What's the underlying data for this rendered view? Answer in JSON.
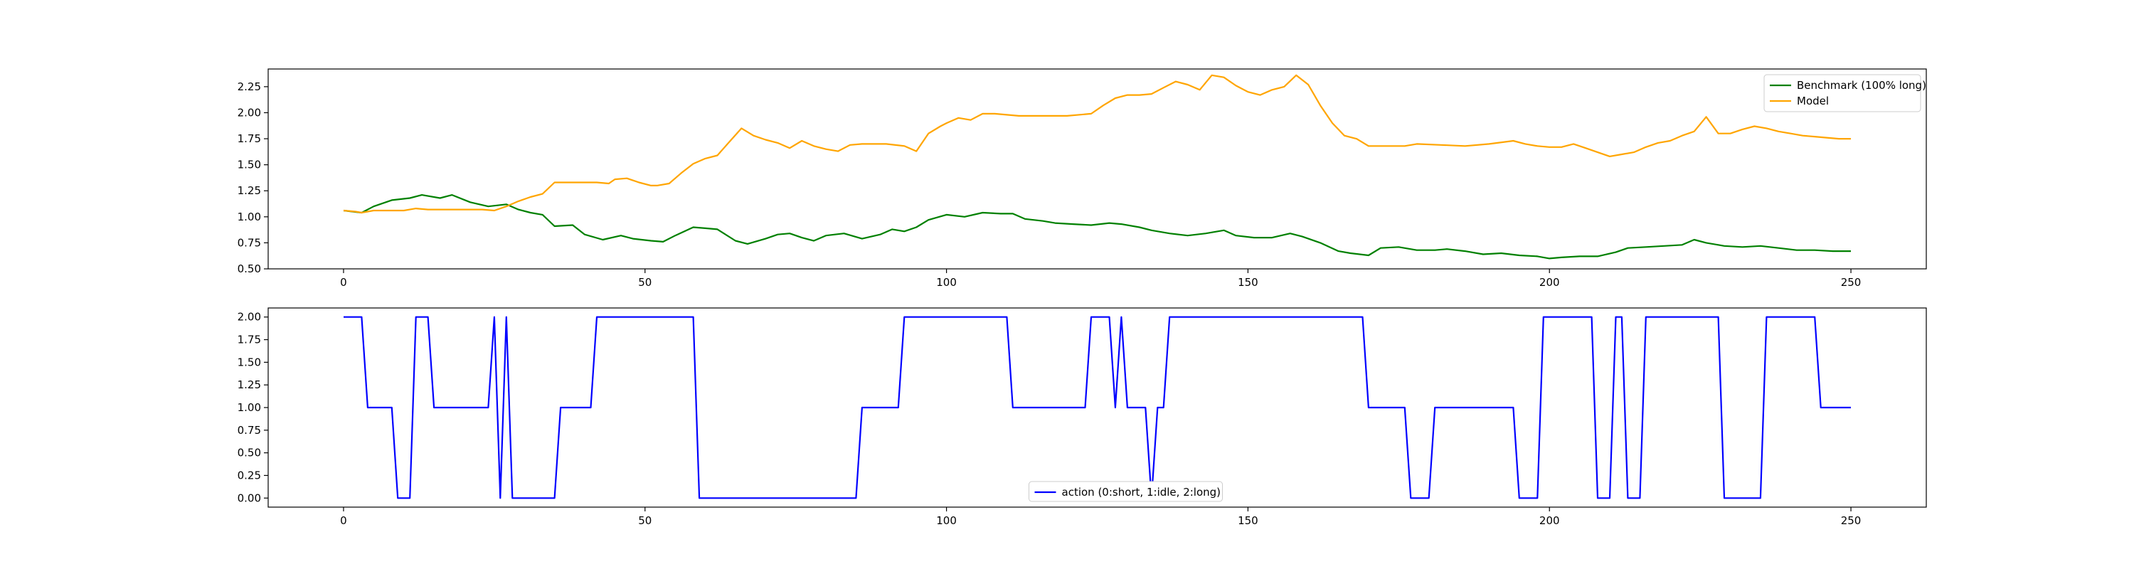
{
  "chart_data": [
    {
      "type": "line",
      "xlim": [
        -12.5,
        262.5
      ],
      "ylim": [
        0.5,
        2.42
      ],
      "xticks": [
        0,
        50,
        100,
        150,
        200,
        250
      ],
      "yticks": [
        0.5,
        0.75,
        1.0,
        1.25,
        1.5,
        1.75,
        2.0,
        2.25
      ],
      "legend_position": "top-right",
      "series": [
        {
          "name": "Benchmark (100% long)",
          "color": "#008000",
          "points": [
            [
              0,
              1.06
            ],
            [
              3,
              1.04
            ],
            [
              5,
              1.1
            ],
            [
              8,
              1.16
            ],
            [
              11,
              1.18
            ],
            [
              13,
              1.21
            ],
            [
              16,
              1.18
            ],
            [
              18,
              1.21
            ],
            [
              21,
              1.14
            ],
            [
              24,
              1.1
            ],
            [
              27,
              1.12
            ],
            [
              29,
              1.07
            ],
            [
              31,
              1.04
            ],
            [
              33,
              1.02
            ],
            [
              35,
              0.91
            ],
            [
              38,
              0.92
            ],
            [
              40,
              0.83
            ],
            [
              43,
              0.78
            ],
            [
              46,
              0.82
            ],
            [
              48,
              0.79
            ],
            [
              51,
              0.77
            ],
            [
              53,
              0.76
            ],
            [
              55,
              0.82
            ],
            [
              58,
              0.9
            ],
            [
              60,
              0.89
            ],
            [
              62,
              0.88
            ],
            [
              65,
              0.77
            ],
            [
              67,
              0.74
            ],
            [
              70,
              0.79
            ],
            [
              72,
              0.83
            ],
            [
              74,
              0.84
            ],
            [
              76,
              0.8
            ],
            [
              78,
              0.77
            ],
            [
              80,
              0.82
            ],
            [
              83,
              0.84
            ],
            [
              86,
              0.79
            ],
            [
              89,
              0.83
            ],
            [
              91,
              0.88
            ],
            [
              93,
              0.86
            ],
            [
              95,
              0.9
            ],
            [
              97,
              0.97
            ],
            [
              100,
              1.02
            ],
            [
              103,
              1.0
            ],
            [
              106,
              1.04
            ],
            [
              109,
              1.03
            ],
            [
              111,
              1.03
            ],
            [
              113,
              0.98
            ],
            [
              116,
              0.96
            ],
            [
              118,
              0.94
            ],
            [
              121,
              0.93
            ],
            [
              124,
              0.92
            ],
            [
              127,
              0.94
            ],
            [
              129,
              0.93
            ],
            [
              132,
              0.9
            ],
            [
              134,
              0.87
            ],
            [
              137,
              0.84
            ],
            [
              140,
              0.82
            ],
            [
              143,
              0.84
            ],
            [
              146,
              0.87
            ],
            [
              148,
              0.82
            ],
            [
              151,
              0.8
            ],
            [
              154,
              0.8
            ],
            [
              157,
              0.84
            ],
            [
              159,
              0.81
            ],
            [
              162,
              0.75
            ],
            [
              165,
              0.67
            ],
            [
              167,
              0.65
            ],
            [
              170,
              0.63
            ],
            [
              172,
              0.7
            ],
            [
              175,
              0.71
            ],
            [
              178,
              0.68
            ],
            [
              181,
              0.68
            ],
            [
              183,
              0.69
            ],
            [
              186,
              0.67
            ],
            [
              189,
              0.64
            ],
            [
              192,
              0.65
            ],
            [
              195,
              0.63
            ],
            [
              198,
              0.62
            ],
            [
              200,
              0.6
            ],
            [
              202,
              0.61
            ],
            [
              205,
              0.62
            ],
            [
              208,
              0.62
            ],
            [
              211,
              0.66
            ],
            [
              213,
              0.7
            ],
            [
              216,
              0.71
            ],
            [
              219,
              0.72
            ],
            [
              222,
              0.73
            ],
            [
              224,
              0.78
            ],
            [
              226,
              0.75
            ],
            [
              229,
              0.72
            ],
            [
              232,
              0.71
            ],
            [
              235,
              0.72
            ],
            [
              238,
              0.7
            ],
            [
              241,
              0.68
            ],
            [
              244,
              0.68
            ],
            [
              247,
              0.67
            ],
            [
              250,
              0.67
            ]
          ]
        },
        {
          "name": "Model",
          "color": "#ffa500",
          "points": [
            [
              0,
              1.06
            ],
            [
              2,
              1.05
            ],
            [
              3,
              1.04
            ],
            [
              5,
              1.06
            ],
            [
              8,
              1.06
            ],
            [
              10,
              1.06
            ],
            [
              12,
              1.08
            ],
            [
              14,
              1.07
            ],
            [
              17,
              1.07
            ],
            [
              20,
              1.07
            ],
            [
              23,
              1.07
            ],
            [
              25,
              1.06
            ],
            [
              27,
              1.1
            ],
            [
              29,
              1.15
            ],
            [
              31,
              1.19
            ],
            [
              33,
              1.22
            ],
            [
              35,
              1.33
            ],
            [
              37,
              1.33
            ],
            [
              40,
              1.33
            ],
            [
              42,
              1.33
            ],
            [
              44,
              1.32
            ],
            [
              45,
              1.36
            ],
            [
              47,
              1.37
            ],
            [
              49,
              1.33
            ],
            [
              51,
              1.3
            ],
            [
              52,
              1.3
            ],
            [
              54,
              1.32
            ],
            [
              56,
              1.42
            ],
            [
              58,
              1.51
            ],
            [
              60,
              1.56
            ],
            [
              62,
              1.59
            ],
            [
              64,
              1.72
            ],
            [
              66,
              1.85
            ],
            [
              68,
              1.78
            ],
            [
              70,
              1.74
            ],
            [
              72,
              1.71
            ],
            [
              74,
              1.66
            ],
            [
              76,
              1.73
            ],
            [
              78,
              1.68
            ],
            [
              80,
              1.65
            ],
            [
              82,
              1.63
            ],
            [
              84,
              1.69
            ],
            [
              86,
              1.7
            ],
            [
              90,
              1.7
            ],
            [
              93,
              1.68
            ],
            [
              95,
              1.63
            ],
            [
              97,
              1.8
            ],
            [
              99,
              1.87
            ],
            [
              100,
              1.9
            ],
            [
              102,
              1.95
            ],
            [
              104,
              1.93
            ],
            [
              106,
              1.99
            ],
            [
              108,
              1.99
            ],
            [
              110,
              1.98
            ],
            [
              112,
              1.97
            ],
            [
              114,
              1.97
            ],
            [
              120,
              1.97
            ],
            [
              124,
              1.99
            ],
            [
              126,
              2.07
            ],
            [
              128,
              2.14
            ],
            [
              130,
              2.17
            ],
            [
              132,
              2.17
            ],
            [
              134,
              2.18
            ],
            [
              136,
              2.24
            ],
            [
              138,
              2.3
            ],
            [
              140,
              2.27
            ],
            [
              142,
              2.22
            ],
            [
              144,
              2.36
            ],
            [
              146,
              2.34
            ],
            [
              148,
              2.26
            ],
            [
              150,
              2.2
            ],
            [
              152,
              2.17
            ],
            [
              154,
              2.22
            ],
            [
              156,
              2.25
            ],
            [
              158,
              2.36
            ],
            [
              160,
              2.27
            ],
            [
              162,
              2.07
            ],
            [
              164,
              1.9
            ],
            [
              166,
              1.78
            ],
            [
              168,
              1.75
            ],
            [
              170,
              1.68
            ],
            [
              172,
              1.68
            ],
            [
              176,
              1.68
            ],
            [
              178,
              1.7
            ],
            [
              182,
              1.69
            ],
            [
              186,
              1.68
            ],
            [
              190,
              1.7
            ],
            [
              194,
              1.73
            ],
            [
              196,
              1.7
            ],
            [
              198,
              1.68
            ],
            [
              200,
              1.67
            ],
            [
              202,
              1.67
            ],
            [
              204,
              1.7
            ],
            [
              206,
              1.66
            ],
            [
              208,
              1.62
            ],
            [
              210,
              1.58
            ],
            [
              212,
              1.6
            ],
            [
              214,
              1.62
            ],
            [
              216,
              1.67
            ],
            [
              218,
              1.71
            ],
            [
              220,
              1.73
            ],
            [
              222,
              1.78
            ],
            [
              224,
              1.82
            ],
            [
              226,
              1.96
            ],
            [
              228,
              1.8
            ],
            [
              230,
              1.8
            ],
            [
              232,
              1.84
            ],
            [
              234,
              1.87
            ],
            [
              236,
              1.85
            ],
            [
              238,
              1.82
            ],
            [
              240,
              1.8
            ],
            [
              242,
              1.78
            ],
            [
              244,
              1.77
            ],
            [
              246,
              1.76
            ],
            [
              248,
              1.75
            ],
            [
              250,
              1.75
            ]
          ]
        }
      ]
    },
    {
      "type": "line",
      "xlim": [
        -12.5,
        262.5
      ],
      "ylim": [
        -0.1,
        2.1
      ],
      "xticks": [
        0,
        50,
        100,
        150,
        200,
        250
      ],
      "yticks": [
        0.0,
        0.25,
        0.5,
        0.75,
        1.0,
        1.25,
        1.5,
        1.75,
        2.0
      ],
      "legend_position": "bottom-center",
      "series": [
        {
          "name": "action (0:short, 1:idle, 2:long)",
          "color": "#0000ff",
          "points": [
            [
              0,
              2
            ],
            [
              3,
              2
            ],
            [
              4,
              1
            ],
            [
              8,
              1
            ],
            [
              9,
              0
            ],
            [
              11,
              0
            ],
            [
              12,
              2
            ],
            [
              14,
              2
            ],
            [
              15,
              1
            ],
            [
              24,
              1
            ],
            [
              25,
              2
            ],
            [
              26,
              0
            ],
            [
              27,
              2
            ],
            [
              28,
              0
            ],
            [
              35,
              0
            ],
            [
              36,
              1
            ],
            [
              41,
              1
            ],
            [
              42,
              2
            ],
            [
              58,
              2
            ],
            [
              59,
              0
            ],
            [
              85,
              0
            ],
            [
              86,
              1
            ],
            [
              92,
              1
            ],
            [
              93,
              2
            ],
            [
              110,
              2
            ],
            [
              111,
              1
            ],
            [
              123,
              1
            ],
            [
              124,
              2
            ],
            [
              127,
              2
            ],
            [
              128,
              1
            ],
            [
              129,
              2
            ],
            [
              130,
              1
            ],
            [
              133,
              1
            ],
            [
              134,
              0
            ],
            [
              135,
              1
            ],
            [
              136,
              1
            ],
            [
              137,
              2
            ],
            [
              169,
              2
            ],
            [
              170,
              1
            ],
            [
              176,
              1
            ],
            [
              177,
              0
            ],
            [
              180,
              0
            ],
            [
              181,
              1
            ],
            [
              194,
              1
            ],
            [
              195,
              0
            ],
            [
              198,
              0
            ],
            [
              199,
              2
            ],
            [
              207,
              2
            ],
            [
              208,
              0
            ],
            [
              210,
              0
            ],
            [
              211,
              2
            ],
            [
              212,
              2
            ],
            [
              213,
              0
            ],
            [
              215,
              0
            ],
            [
              216,
              2
            ],
            [
              228,
              2
            ],
            [
              229,
              0
            ],
            [
              235,
              0
            ],
            [
              236,
              2
            ],
            [
              244,
              2
            ],
            [
              245,
              1
            ],
            [
              250,
              1
            ]
          ]
        }
      ]
    }
  ]
}
